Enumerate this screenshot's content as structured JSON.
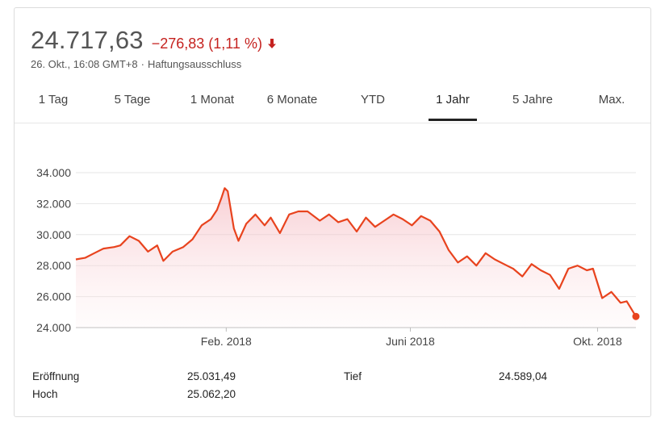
{
  "header": {
    "price": "24.717,63",
    "change": "−276,83 (1,11 %)",
    "date": "26. Okt., 16:08 GMT+8",
    "separator": "·",
    "disclaimer": "Haftungsausschluss"
  },
  "colors": {
    "down": "#c5221f",
    "line": "#e8431e",
    "grid": "#e6e6e6"
  },
  "icons": {
    "change_direction": "arrow-down-icon"
  },
  "tabs": [
    {
      "label": "1 Tag",
      "active": false
    },
    {
      "label": "5 Tage",
      "active": false
    },
    {
      "label": "1 Monat",
      "active": false
    },
    {
      "label": "6 Monate",
      "active": false
    },
    {
      "label": "YTD",
      "active": false
    },
    {
      "label": "1 Jahr",
      "active": true
    },
    {
      "label": "5 Jahre",
      "active": false
    },
    {
      "label": "Max.",
      "active": false
    }
  ],
  "stats": {
    "open_label": "Eröffnung",
    "open_value": "25.031,49",
    "high_label": "Hoch",
    "high_value": "25.062,20",
    "low_label": "Tief",
    "low_value": "24.589,04"
  },
  "chart_data": {
    "type": "area",
    "ylim": [
      24000,
      34000
    ],
    "yticks": [
      24000,
      26000,
      28000,
      30000,
      32000,
      34000
    ],
    "ytick_labels": [
      "24.000",
      "26.000",
      "28.000",
      "30.000",
      "32.000",
      "34.000"
    ],
    "xlim": [
      "2017-10-26",
      "2018-10-26"
    ],
    "xticks": [
      {
        "date": "2018-02-01",
        "label": "Feb. 2018"
      },
      {
        "date": "2018-06-01",
        "label": "Juni 2018"
      },
      {
        "date": "2018-10-01",
        "label": "Okt. 2018"
      }
    ],
    "grid": true,
    "x": [
      "2017-10-26",
      "2017-11-01",
      "2017-11-07",
      "2017-11-13",
      "2017-11-20",
      "2017-11-24",
      "2017-11-30",
      "2017-12-06",
      "2017-12-12",
      "2017-12-18",
      "2017-12-22",
      "2017-12-28",
      "2018-01-04",
      "2018-01-10",
      "2018-01-16",
      "2018-01-22",
      "2018-01-26",
      "2018-01-29",
      "2018-01-31",
      "2018-02-02",
      "2018-02-06",
      "2018-02-09",
      "2018-02-14",
      "2018-02-20",
      "2018-02-26",
      "2018-03-02",
      "2018-03-08",
      "2018-03-14",
      "2018-03-20",
      "2018-03-26",
      "2018-04-03",
      "2018-04-09",
      "2018-04-15",
      "2018-04-21",
      "2018-04-27",
      "2018-05-03",
      "2018-05-09",
      "2018-05-15",
      "2018-05-21",
      "2018-05-27",
      "2018-06-02",
      "2018-06-08",
      "2018-06-14",
      "2018-06-20",
      "2018-06-26",
      "2018-07-02",
      "2018-07-08",
      "2018-07-14",
      "2018-07-20",
      "2018-07-26",
      "2018-08-01",
      "2018-08-07",
      "2018-08-13",
      "2018-08-19",
      "2018-08-25",
      "2018-08-31",
      "2018-09-06",
      "2018-09-12",
      "2018-09-18",
      "2018-09-24",
      "2018-09-28",
      "2018-10-04",
      "2018-10-10",
      "2018-10-16",
      "2018-10-20",
      "2018-10-26"
    ],
    "series": [
      {
        "values": [
          28400,
          28500,
          28800,
          29100,
          29200,
          29300,
          29900,
          29600,
          28900,
          29300,
          28300,
          28900,
          29200,
          29700,
          30600,
          31000,
          31600,
          32400,
          33000,
          32800,
          30400,
          29600,
          30700,
          31300,
          30600,
          31100,
          30100,
          31300,
          31500,
          31500,
          30900,
          31300,
          30800,
          31000,
          30200,
          31100,
          30500,
          30900,
          31300,
          31000,
          30600,
          31200,
          30900,
          30200,
          29000,
          28200,
          28600,
          28000,
          28800,
          28400,
          28100,
          27800,
          27300,
          28100,
          27700,
          27400,
          26500,
          27800,
          28000,
          27700,
          27800,
          25900,
          26300,
          25600,
          25700,
          24718
        ]
      }
    ]
  }
}
